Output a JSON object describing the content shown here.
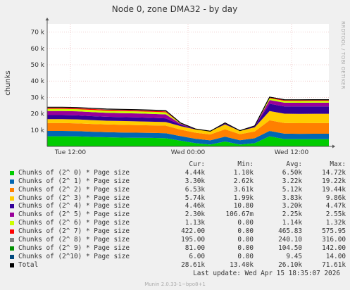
{
  "chart_data": {
    "type": "area",
    "title": "Node 0, zone DMA32 - by day",
    "ylabel": "chunks",
    "ylim": [
      0,
      75000
    ],
    "y_ticks": [
      10000,
      20000,
      30000,
      40000,
      50000,
      60000,
      70000
    ],
    "y_tick_labels": [
      "10 k",
      "20 k",
      "30 k",
      "40 k",
      "50 k",
      "60 k",
      "70 k"
    ],
    "x_ticks": [
      "Tue 12:00",
      "Wed 00:00",
      "Wed 12:00"
    ],
    "grid": true,
    "stacked": true,
    "side_label": "RRDTOOL / TOBI OETIKER",
    "series": [
      {
        "name": "Chunks of (2^ 0) * Page size",
        "color": "#00cc00",
        "cur": "4.44k",
        "min": "1.10k",
        "avg": "6.50k",
        "max": "14.72k",
        "values": [
          6200,
          6200,
          6100,
          5800,
          5600,
          5400,
          5300,
          5200,
          5000,
          3500,
          2000,
          1100,
          3000,
          1100,
          2000,
          6200,
          4500,
          4400,
          4450,
          4440
        ]
      },
      {
        "name": "Chunks of (2^ 1) * Page size",
        "color": "#0066b3",
        "cur": "3.30k",
        "min": "2.62k",
        "avg": "3.22k",
        "max": "19.22k",
        "values": [
          3300,
          3300,
          3250,
          3200,
          3150,
          3150,
          3100,
          3100,
          3100,
          2800,
          2700,
          2620,
          3000,
          2700,
          3000,
          3300,
          3300,
          3300,
          3300,
          3300
        ]
      },
      {
        "name": "Chunks of (2^ 2) * Page size",
        "color": "#ff8000",
        "cur": "6.53k",
        "min": "3.61k",
        "avg": "5.12k",
        "max": "19.44k",
        "values": [
          4800,
          4800,
          4800,
          4750,
          4700,
          4700,
          4650,
          4600,
          4600,
          4000,
          3700,
          3610,
          4500,
          3700,
          4200,
          6500,
          6520,
          6530,
          6530,
          6530
        ]
      },
      {
        "name": "Chunks of (2^ 3) * Page size",
        "color": "#ffcc00",
        "cur": "5.74k",
        "min": "1.99k",
        "avg": "3.83k",
        "max": "9.86k",
        "values": [
          2400,
          2400,
          2400,
          2350,
          2300,
          2300,
          2300,
          2250,
          2200,
          2100,
          2000,
          1990,
          3000,
          2000,
          2500,
          5700,
          5720,
          5740,
          5740,
          5740
        ]
      },
      {
        "name": "Chunks of (2^ 4) * Page size",
        "color": "#330099",
        "cur": "4.46k",
        "min": "10.80",
        "avg": "3.20k",
        "max": "4.47k",
        "values": [
          2500,
          2500,
          2450,
          2450,
          2400,
          2400,
          2400,
          2350,
          2300,
          900,
          200,
          10.8,
          500,
          100,
          600,
          4400,
          4440,
          4460,
          4460,
          4460
        ]
      },
      {
        "name": "Chunks of (2^ 5) * Page size",
        "color": "#990099",
        "cur": "2.30k",
        "min": "106.67m",
        "avg": "2.25k",
        "max": "2.55k",
        "values": [
          2500,
          2500,
          2500,
          2500,
          2450,
          2450,
          2450,
          2400,
          2400,
          600,
          100,
          0.107,
          300,
          50,
          200,
          2300,
          2300,
          2300,
          2300,
          2300
        ]
      },
      {
        "name": "Chunks of (2^ 6) * Page size",
        "color": "#ccff00",
        "cur": "1.13k",
        "min": "0.00",
        "avg": "1.14k",
        "max": "1.32k",
        "values": [
          1300,
          1300,
          1300,
          1300,
          1300,
          1300,
          1300,
          1300,
          1300,
          300,
          0,
          0,
          100,
          0,
          100,
          1130,
          1130,
          1130,
          1130,
          1130
        ]
      },
      {
        "name": "Chunks of (2^ 7) * Page size",
        "color": "#ff0000",
        "cur": "422.00",
        "min": "0.00",
        "avg": "465.83",
        "max": "575.95",
        "values": [
          570,
          570,
          570,
          570,
          570,
          570,
          570,
          570,
          570,
          100,
          0,
          0,
          0,
          0,
          0,
          422,
          422,
          422,
          422,
          422
        ]
      },
      {
        "name": "Chunks of (2^ 8) * Page size",
        "color": "#808080",
        "cur": "195.00",
        "min": "0.00",
        "avg": "240.10",
        "max": "316.00",
        "values": [
          300,
          300,
          300,
          300,
          300,
          300,
          300,
          300,
          300,
          50,
          0,
          0,
          0,
          0,
          0,
          195,
          195,
          195,
          195,
          195
        ]
      },
      {
        "name": "Chunks of (2^ 9) * Page size",
        "color": "#008f00",
        "cur": "81.00",
        "min": "0.00",
        "avg": "104.50",
        "max": "142.00",
        "values": [
          140,
          140,
          140,
          140,
          140,
          140,
          140,
          140,
          140,
          20,
          0,
          0,
          0,
          0,
          0,
          81,
          81,
          81,
          81,
          81
        ]
      },
      {
        "name": "Chunks of (2^10) * Page size",
        "color": "#00487d",
        "cur": "6.00",
        "min": "0.00",
        "avg": "9.45",
        "max": "14.00",
        "values": [
          14,
          14,
          14,
          14,
          14,
          14,
          14,
          14,
          14,
          2,
          0,
          0,
          0,
          0,
          0,
          6,
          6,
          6,
          6,
          6
        ]
      }
    ],
    "total": {
      "name": "Total",
      "color": "#000000",
      "cur": "28.61k",
      "min": "13.40k",
      "avg": "26.10k",
      "max": "71.61k"
    }
  },
  "legend_headers": {
    "cur": "Cur:",
    "min": "Min:",
    "avg": "Avg:",
    "max": "Max:"
  },
  "last_update": "Last update: Wed Apr 15 18:35:07 2026",
  "footer": "Munin 2.0.33-1~bpo8+1"
}
